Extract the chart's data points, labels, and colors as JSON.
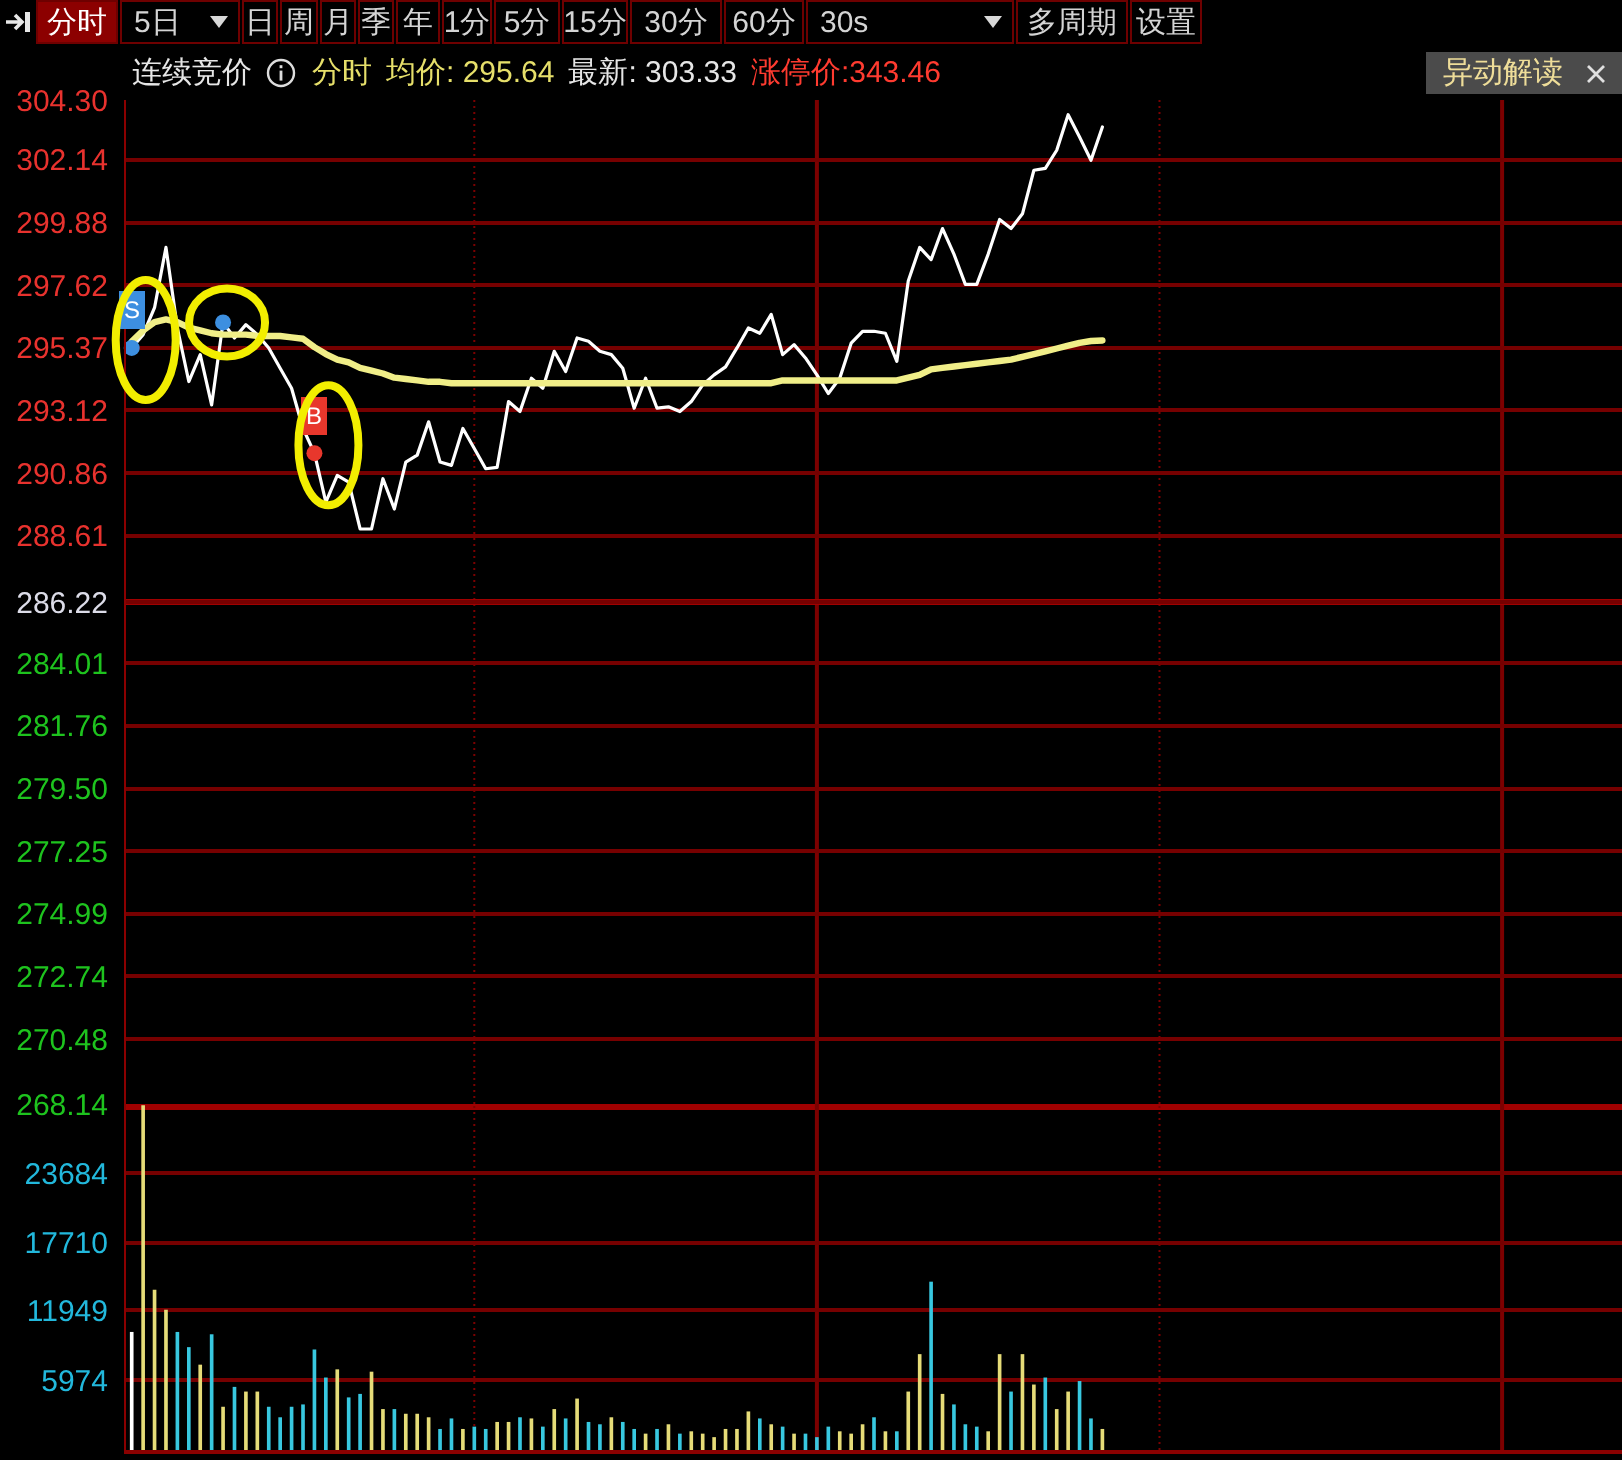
{
  "chart_data": [
    {
      "type": "other",
      "annotations": [
        "分时",
        "5日",
        "日",
        "周",
        "月",
        "季",
        "年",
        "1分",
        "5分",
        "15分",
        "30分",
        "60分",
        "30s",
        "多周期",
        "设置"
      ]
    },
    {
      "type": "line",
      "annotations": [
        "连续竞价",
        "分时",
        "均价: 295.64",
        "最新: 303.33",
        "涨停价:343.46",
        "异动解读"
      ],
      "categories": [
        null,
        null,
        null,
        null,
        null,
        null,
        null,
        null,
        null,
        null,
        null,
        null,
        null,
        null,
        null,
        null,
        null,
        null,
        null,
        null,
        null,
        null,
        null,
        null,
        null,
        null,
        null,
        null,
        null,
        null,
        null,
        null,
        null,
        null,
        null,
        null,
        null,
        null,
        null,
        null,
        null,
        null,
        null,
        null,
        null,
        null,
        null,
        null,
        null,
        null,
        null,
        null,
        null,
        null,
        null,
        null,
        null,
        null,
        null,
        null,
        null,
        null,
        null,
        null,
        null,
        null,
        null,
        null,
        null,
        null,
        null,
        null,
        null,
        null,
        null,
        null,
        null,
        null,
        null,
        null,
        null,
        null,
        null,
        null,
        null,
        null,
        null,
        null,
        null,
        null,
        null,
        null,
        null,
        null,
        null,
        null,
        null,
        null,
        null,
        null,
        null,
        null,
        null,
        null,
        null,
        null,
        null,
        null,
        null,
        null,
        null,
        null,
        null,
        null,
        null,
        null,
        null,
        null,
        null,
        null,
        null,
        null,
        null,
        null,
        null,
        null,
        null,
        null,
        null,
        null,
        null
      ],
      "ylim": [
        268.14,
        304.3
      ],
      "yticks": [
        {
          "value": 304.3,
          "label": "304.30"
        },
        302.14,
        299.88,
        297.62,
        295.37,
        293.12,
        290.86,
        288.61,
        286.22,
        284.01,
        281.76,
        {
          "value": 279.5,
          "label": "279.50"
        },
        277.25,
        274.99,
        272.74,
        270.48,
        268.14
      ],
      "grid": "y",
      "ref_lines": [
        {
          "axis": "y",
          "value": 286.22,
          "color": "#a00000",
          "line_style": "solid"
        }
      ],
      "series": [
        {
          "type": "line",
          "color": "#ffffff",
          "values": [
            295.37,
            295.85,
            296.82,
            298.99,
            296.09,
            294.16,
            295.13,
            293.32,
            296.29,
            295.73,
            296.21,
            295.85,
            295.37,
            294.64,
            293.92,
            292.47,
            291.58,
            289.82,
            290.78,
            290.54,
            288.85,
            288.85,
            290.66,
            289.57,
            291.26,
            291.51,
            292.71,
            291.26,
            291.14,
            292.47,
            291.75,
            291.02,
            291.07,
            293.44,
            293.08,
            294.28,
            293.92,
            295.25,
            294.52,
            295.73,
            295.61,
            295.25,
            295.13,
            294.64,
            293.2,
            294.28,
            293.2,
            293.25,
            293.08,
            293.44,
            294.04,
            294.4,
            294.69,
            295.37,
            296.09,
            295.9,
            296.58,
            295.13,
            295.49,
            295.01,
            294.4,
            293.73,
            294.28,
            295.54,
            295.97,
            295.97,
            295.9,
            294.89,
            297.78,
            298.99,
            298.55,
            299.67,
            298.75,
            297.66,
            297.66,
            298.75,
            300.0,
            299.67,
            300.2,
            301.77,
            301.84,
            302.49,
            303.77,
            302.97,
            302.13,
            303.33,
            null,
            null,
            null,
            null,
            null,
            null,
            null,
            null,
            null,
            null,
            null,
            null,
            null,
            null,
            null,
            null,
            null,
            null,
            null,
            null,
            null,
            null,
            null,
            null,
            null,
            null,
            null,
            null,
            null,
            null,
            null,
            null,
            null,
            null,
            null,
            null,
            null,
            null,
            null,
            null,
            null,
            null,
            null,
            null,
            null
          ]
        },
        {
          "type": "line",
          "color": "#f0ee88",
          "values": [
            295.6,
            296.0,
            296.3,
            296.4,
            296.3,
            296.1,
            296.0,
            295.9,
            295.85,
            295.85,
            295.85,
            295.8,
            295.8,
            295.8,
            295.75,
            295.7,
            295.4,
            295.15,
            294.95,
            294.85,
            294.65,
            294.55,
            294.45,
            294.3,
            294.25,
            294.2,
            294.15,
            294.15,
            294.1,
            294.1,
            294.1,
            294.1,
            294.1,
            294.1,
            294.1,
            294.1,
            294.1,
            294.1,
            294.1,
            294.1,
            294.1,
            294.1,
            294.1,
            294.1,
            294.1,
            294.1,
            294.1,
            294.1,
            294.1,
            294.1,
            294.1,
            294.1,
            294.1,
            294.1,
            294.1,
            294.1,
            294.1,
            294.2,
            294.2,
            294.2,
            294.2,
            294.2,
            294.2,
            294.2,
            294.2,
            294.2,
            294.2,
            294.2,
            294.3,
            294.4,
            294.6,
            294.65,
            294.7,
            294.75,
            294.8,
            294.85,
            294.9,
            294.95,
            295.05,
            295.15,
            295.25,
            295.35,
            295.45,
            295.55,
            295.62,
            295.64,
            null,
            null,
            null,
            null,
            null,
            null,
            null,
            null,
            null,
            null,
            null,
            null,
            null,
            null,
            null,
            null,
            null,
            null,
            null,
            null,
            null,
            null,
            null,
            null,
            null,
            null,
            null,
            null,
            null,
            null,
            null,
            null,
            null,
            null,
            null,
            null,
            null,
            null,
            null,
            null,
            null,
            null,
            null,
            null,
            null
          ]
        },
        {
          "type": "scatter",
          "name": "S",
          "color": "#3d8fe0",
          "marker": "circle",
          "values": [
            295.37,
            null,
            null,
            null,
            null,
            null,
            null,
            null,
            null,
            null,
            null,
            null,
            null,
            null,
            null,
            null,
            null,
            null,
            null,
            null,
            null,
            null,
            null,
            null,
            null,
            null,
            null,
            null,
            null,
            null,
            null,
            null,
            null,
            null,
            null,
            null,
            null,
            null,
            null,
            null,
            null,
            null,
            null,
            null,
            null,
            null,
            null,
            null,
            null,
            null,
            null,
            null,
            null,
            null,
            null,
            null,
            null,
            null,
            null,
            null,
            null,
            null,
            null,
            null,
            null,
            null,
            null,
            null,
            null,
            null,
            null,
            null,
            null,
            null,
            null,
            null,
            null,
            null,
            null,
            null,
            null,
            null,
            null,
            null,
            null,
            null,
            null,
            null,
            null,
            null,
            null,
            null,
            null,
            null,
            null,
            null,
            null,
            null,
            null,
            null,
            null,
            null,
            null,
            null,
            null,
            null,
            null,
            null,
            null,
            null,
            null,
            null,
            null,
            null,
            null,
            null,
            null,
            null,
            null,
            null,
            null,
            null,
            null,
            null,
            null,
            null,
            null,
            null,
            null,
            null,
            null
          ]
        },
        {
          "type": "scatter",
          "color": "#3d8fe0",
          "marker": "circle",
          "values": [
            null,
            null,
            null,
            null,
            null,
            null,
            null,
            null,
            296.29,
            null,
            null,
            null,
            null,
            null,
            null,
            null,
            null,
            null,
            null,
            null,
            null,
            null,
            null,
            null,
            null,
            null,
            null,
            null,
            null,
            null,
            null,
            null,
            null,
            null,
            null,
            null,
            null,
            null,
            null,
            null,
            null,
            null,
            null,
            null,
            null,
            null,
            null,
            null,
            null,
            null,
            null,
            null,
            null,
            null,
            null,
            null,
            null,
            null,
            null,
            null,
            null,
            null,
            null,
            null,
            null,
            null,
            null,
            null,
            null,
            null,
            null,
            null,
            null,
            null,
            null,
            null,
            null,
            null,
            null,
            null,
            null,
            null,
            null,
            null,
            null,
            null,
            null,
            null,
            null,
            null,
            null,
            null,
            null,
            null,
            null,
            null,
            null,
            null,
            null,
            null,
            null,
            null,
            null,
            null,
            null,
            null,
            null,
            null,
            null,
            null,
            null,
            null,
            null,
            null,
            null,
            null,
            null,
            null,
            null,
            null,
            null,
            null,
            null,
            null,
            null,
            null,
            null,
            null,
            null,
            null,
            null
          ]
        },
        {
          "type": "scatter",
          "name": "B",
          "color": "#e8372c",
          "marker": "circle",
          "values": [
            null,
            null,
            null,
            null,
            null,
            null,
            null,
            null,
            null,
            null,
            null,
            null,
            null,
            null,
            null,
            null,
            291.58,
            null,
            null,
            null,
            null,
            null,
            null,
            null,
            null,
            null,
            null,
            null,
            null,
            null,
            null,
            null,
            null,
            null,
            null,
            null,
            null,
            null,
            null,
            null,
            null,
            null,
            null,
            null,
            null,
            null,
            null,
            null,
            null,
            null,
            null,
            null,
            null,
            null,
            null,
            null,
            null,
            null,
            null,
            null,
            null,
            null,
            null,
            null,
            null,
            null,
            null,
            null,
            null,
            null,
            null,
            null,
            null,
            null,
            null,
            null,
            null,
            null,
            null,
            null,
            null,
            null,
            null,
            null,
            null,
            null,
            null,
            null,
            null,
            null,
            null,
            null,
            null,
            null,
            null,
            null,
            null,
            null,
            null,
            null,
            null,
            null,
            null,
            null,
            null,
            null,
            null,
            null,
            null,
            null,
            null,
            null,
            null,
            null,
            null,
            null,
            null,
            null,
            null,
            null,
            null,
            null,
            null,
            null,
            null,
            null,
            null,
            null,
            null,
            null,
            null
          ]
        }
      ]
    },
    {
      "type": "bar",
      "categories": [
        null,
        null,
        null,
        null,
        null,
        null,
        null,
        null,
        null,
        null,
        null,
        null,
        null,
        null,
        null,
        null,
        null,
        null,
        null,
        null,
        null,
        null,
        null,
        null,
        null,
        null,
        null,
        null,
        null,
        null,
        null,
        null,
        null,
        null,
        null,
        null,
        null,
        null,
        null,
        null,
        null,
        null,
        null,
        null,
        null,
        null,
        null,
        null,
        null,
        null,
        null,
        null,
        null,
        null,
        null,
        null,
        null,
        null,
        null,
        null,
        null,
        null,
        null,
        null,
        null,
        null,
        null,
        null,
        null,
        null,
        null,
        null,
        null,
        null,
        null,
        null,
        null,
        null,
        null,
        null,
        null,
        null,
        null,
        null,
        null,
        null,
        null,
        null,
        null,
        null,
        null,
        null,
        null,
        null,
        null,
        null,
        null,
        null,
        null,
        null,
        null,
        null,
        null,
        null,
        null,
        null,
        null,
        null,
        null,
        null,
        null,
        null,
        null,
        null,
        null,
        null,
        null,
        null,
        null,
        null,
        null,
        null,
        null,
        null,
        null,
        null,
        null,
        null,
        null,
        null,
        null
      ],
      "values": [
        10100,
        29500,
        13700,
        12000,
        10100,
        8800,
        7300,
        9900,
        3700,
        5400,
        5000,
        5000,
        3700,
        2800,
        3700,
        3900,
        8600,
        6200,
        6900,
        4500,
        4800,
        6700,
        3500,
        3500,
        3100,
        3100,
        2800,
        1800,
        2700,
        1800,
        2000,
        1800,
        2400,
        2400,
        2800,
        2700,
        2000,
        3500,
        2700,
        4400,
        2400,
        2200,
        2800,
        2400,
        1800,
        1400,
        1800,
        2200,
        1400,
        1600,
        1400,
        1100,
        1800,
        1800,
        3300,
        2700,
        2200,
        2000,
        1400,
        1400,
        1100,
        2000,
        1600,
        1400,
        2200,
        2800,
        1600,
        1600,
        5000,
        8200,
        14400,
        4800,
        3900,
        2200,
        2000,
        1600,
        8200,
        5000,
        8200,
        5600,
        6200,
        3500,
        5000,
        5900,
        2700,
        1800,
        null,
        null,
        null,
        null,
        null,
        null,
        null,
        null,
        null,
        null,
        null,
        null,
        null,
        null,
        null,
        null,
        null,
        null,
        null,
        null,
        null,
        null,
        null,
        null,
        null,
        null,
        null,
        null,
        null,
        null,
        null,
        null,
        null,
        null,
        null,
        null,
        null,
        null,
        null,
        null,
        null,
        null,
        null,
        null,
        null
      ],
      "colors": [
        "#ffffff",
        "#e6dc78",
        "#e6dc78",
        "#e6dc78",
        "#38c8e0",
        "#38c8e0",
        "#e6dc78",
        "#38c8e0",
        "#e6dc78",
        "#38c8e0",
        "#e6dc78",
        "#e6dc78",
        "#38c8e0",
        "#38c8e0",
        "#38c8e0",
        "#38c8e0",
        "#38c8e0",
        "#38c8e0",
        "#e6dc78",
        "#38c8e0",
        "#38c8e0",
        "#e6dc78",
        "#e6dc78",
        "#38c8e0",
        "#e6dc78",
        "#e6dc78",
        "#e6dc78",
        "#38c8e0",
        "#38c8e0",
        "#e6dc78",
        "#38c8e0",
        "#38c8e0",
        "#e6dc78",
        "#e6dc78",
        "#38c8e0",
        "#e6dc78",
        "#38c8e0",
        "#e6dc78",
        "#38c8e0",
        "#e6dc78",
        "#38c8e0",
        "#38c8e0",
        "#e6dc78",
        "#38c8e0",
        "#38c8e0",
        "#e6dc78",
        "#38c8e0",
        "#e6dc78",
        "#38c8e0",
        "#e6dc78",
        "#e6dc78",
        "#e6dc78",
        "#e6dc78",
        "#e6dc78",
        "#e6dc78",
        "#38c8e0",
        "#e6dc78",
        "#38c8e0",
        "#e6dc78",
        "#38c8e0",
        "#38c8e0",
        "#38c8e0",
        "#e6dc78",
        "#e6dc78",
        "#e6dc78",
        "#38c8e0",
        "#e6dc78",
        "#38c8e0",
        "#e6dc78",
        "#e6dc78",
        "#38c8e0",
        "#e6dc78",
        "#38c8e0",
        "#38c8e0",
        "#38c8e0",
        "#e6dc78",
        "#e6dc78",
        "#38c8e0",
        "#e6dc78",
        "#e6dc78",
        "#38c8e0",
        "#e6dc78",
        "#e6dc78",
        "#38c8e0",
        "#38c8e0",
        "#e6dc78",
        null,
        null,
        null,
        null,
        null,
        null,
        null,
        null,
        null,
        null,
        null,
        null,
        null,
        null,
        null,
        null,
        null,
        null,
        null,
        null,
        null,
        null,
        null,
        null,
        null,
        null,
        null,
        null,
        null,
        null,
        null,
        null,
        null,
        null,
        null,
        null,
        null,
        null,
        null,
        null,
        null,
        null,
        null,
        null,
        null
      ],
      "ylim": [
        0,
        29600
      ],
      "yticks": [
        5974,
        11949,
        17710,
        23684
      ],
      "grid": "y"
    }
  ]
}
